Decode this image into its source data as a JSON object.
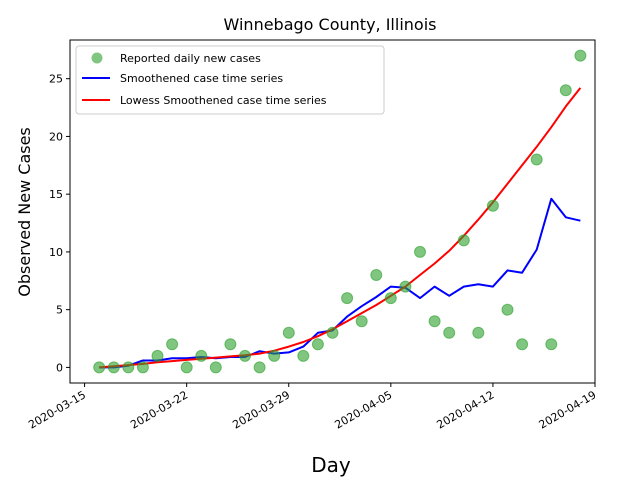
{
  "chart_data": {
    "type": "line",
    "title": "Winnebago County, Illinois",
    "xlabel": "Day",
    "ylabel": "Observed New Cases",
    "x_dates": [
      "2020-03-16",
      "2020-03-17",
      "2020-03-18",
      "2020-03-19",
      "2020-03-20",
      "2020-03-21",
      "2020-03-22",
      "2020-03-23",
      "2020-03-24",
      "2020-03-25",
      "2020-03-26",
      "2020-03-27",
      "2020-03-28",
      "2020-03-29",
      "2020-03-30",
      "2020-03-31",
      "2020-04-01",
      "2020-04-02",
      "2020-04-03",
      "2020-04-04",
      "2020-04-05",
      "2020-04-06",
      "2020-04-07",
      "2020-04-08",
      "2020-04-09",
      "2020-04-10",
      "2020-04-11",
      "2020-04-12",
      "2020-04-13",
      "2020-04-14",
      "2020-04-15",
      "2020-04-16",
      "2020-04-17",
      "2020-04-18"
    ],
    "x_tick_labels": [
      "2020-03-15",
      "2020-03-22",
      "2020-03-29",
      "2020-04-05",
      "2020-04-12",
      "2020-04-19"
    ],
    "xlim": [
      "2020-03-14",
      "2020-04-19"
    ],
    "y_ticks": [
      0,
      5,
      10,
      15,
      20,
      25
    ],
    "ylim": [
      -1.35,
      28.35
    ],
    "grid": false,
    "legend_position": "upper-left",
    "series": [
      {
        "name": "Reported daily new cases",
        "kind": "scatter",
        "color": "#2ca02c",
        "values": [
          0,
          0,
          0,
          0,
          1,
          2,
          0,
          1,
          0,
          2,
          1,
          0,
          1,
          3,
          1,
          2,
          3,
          6,
          4,
          8,
          6,
          7,
          10,
          4,
          3,
          11,
          3,
          14,
          5,
          2,
          18,
          2,
          24,
          27
        ]
      },
      {
        "name": "Smoothened case time series",
        "kind": "line",
        "color": "#0000ff",
        "values": [
          0.0,
          0.0,
          0.15,
          0.6,
          0.6,
          0.8,
          0.8,
          0.9,
          0.8,
          0.9,
          0.9,
          1.4,
          1.2,
          1.3,
          1.8,
          3.0,
          3.2,
          4.4,
          5.3,
          6.1,
          7.0,
          6.9,
          6.0,
          7.0,
          6.2,
          7.0,
          7.2,
          7.0,
          8.4,
          8.2,
          10.2,
          14.6,
          13.0,
          12.7
        ]
      },
      {
        "name": "Lowess Smoothened case time series",
        "kind": "line",
        "color": "#ff0000",
        "values": [
          0.0,
          0.1,
          0.2,
          0.3,
          0.45,
          0.55,
          0.65,
          0.75,
          0.85,
          0.95,
          1.05,
          1.2,
          1.45,
          1.8,
          2.2,
          2.7,
          3.3,
          4.0,
          4.7,
          5.4,
          6.2,
          7.0,
          8.0,
          9.0,
          10.1,
          11.4,
          12.8,
          14.3,
          15.9,
          17.5,
          19.1,
          20.8,
          22.6,
          24.2
        ]
      }
    ]
  }
}
